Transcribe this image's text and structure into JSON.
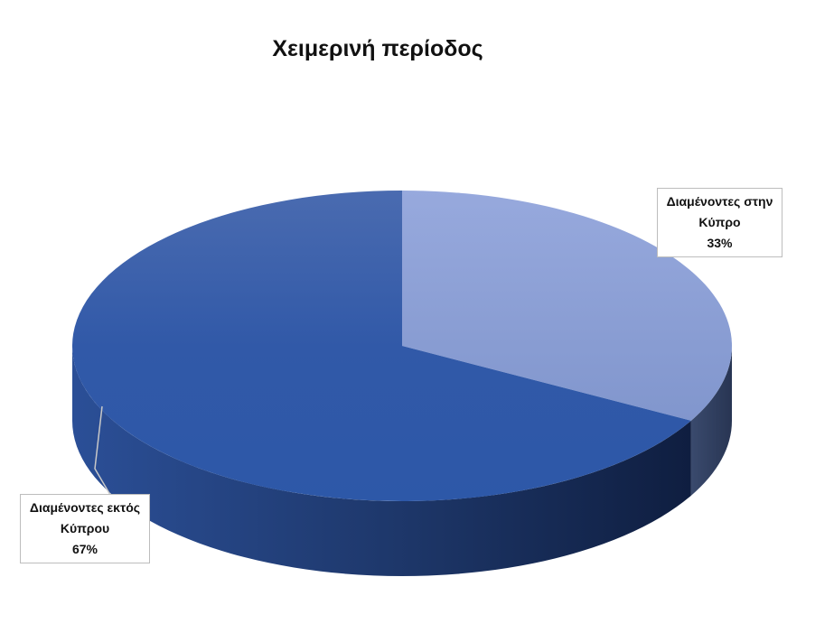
{
  "chart_data": {
    "type": "pie",
    "title": "Χειμερινή περίοδος",
    "categories": [
      "Διαμένοντες στην Κύπρο",
      "Διαμένοντες εκτός Κύπρου"
    ],
    "values": [
      33,
      67
    ],
    "unit": "%",
    "data_labels": [
      {
        "line1": "Διαμένοντες στην",
        "line2": "Κύπρο",
        "value": "33%"
      },
      {
        "line1": "Διαμένοντες εκτός",
        "line2": "Κύπρου",
        "value": "67%"
      }
    ],
    "colors": [
      "#8aa0d6",
      "#2f5aa8"
    ],
    "style": "3d",
    "legend": "none"
  }
}
